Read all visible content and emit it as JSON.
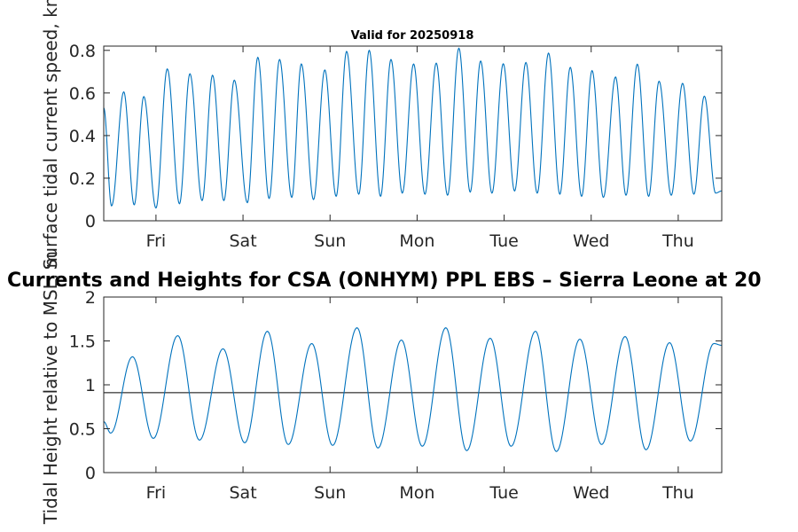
{
  "chart_data": [
    {
      "type": "line",
      "title": "Valid for 20250918",
      "ylabel": "Surface tidal current speed, kn",
      "xlabel": "",
      "ylim": [
        0,
        0.82
      ],
      "yticks": [
        0,
        0.2,
        0.4,
        0.6,
        0.8
      ],
      "ytick_labels": [
        "0",
        "0.2",
        "0.4",
        "0.6",
        "0.8"
      ],
      "xlim": [
        0,
        7.1
      ],
      "x_unit": "days from start of record",
      "xticks": [
        0.6,
        1.6,
        2.6,
        3.6,
        4.6,
        5.6,
        6.6
      ],
      "xtick_labels": [
        "Fri",
        "Sat",
        "Sun",
        "Mon",
        "Tue",
        "Wed",
        "Thu"
      ],
      "grid": false,
      "series": [
        {
          "color": "#0072bd",
          "peak_times": [
            0.23,
            0.46,
            0.73,
            0.99,
            1.25,
            1.5,
            1.77,
            2.02,
            2.27,
            2.54,
            2.79,
            3.05,
            3.3,
            3.56,
            3.82,
            4.08,
            4.33,
            4.59,
            4.85,
            5.11,
            5.36,
            5.61,
            5.88,
            6.13,
            6.38,
            6.65,
            6.9
          ],
          "peak_values": [
            0.605,
            0.583,
            0.713,
            0.69,
            0.683,
            0.66,
            0.767,
            0.757,
            0.736,
            0.708,
            0.795,
            0.8,
            0.757,
            0.736,
            0.74,
            0.81,
            0.75,
            0.737,
            0.743,
            0.787,
            0.72,
            0.705,
            0.675,
            0.735,
            0.655,
            0.645,
            0.585
          ],
          "trough_times": [
            0.09,
            0.35,
            0.6,
            0.87,
            1.13,
            1.38,
            1.65,
            1.9,
            2.16,
            2.41,
            2.67,
            2.93,
            3.18,
            3.43,
            3.69,
            3.95,
            4.21,
            4.46,
            4.72,
            4.98,
            5.24,
            5.49,
            5.74,
            6.0,
            6.26,
            6.52,
            6.78,
            7.03
          ],
          "trough_values": [
            0.07,
            0.075,
            0.06,
            0.08,
            0.095,
            0.095,
            0.085,
            0.105,
            0.11,
            0.1,
            0.115,
            0.125,
            0.115,
            0.13,
            0.125,
            0.12,
            0.135,
            0.13,
            0.14,
            0.13,
            0.125,
            0.115,
            0.11,
            0.12,
            0.115,
            0.12,
            0.125,
            0.13
          ],
          "start_value": 0.53,
          "end_value": 0.14
        }
      ]
    },
    {
      "type": "line",
      "title": "Currents and Heights for CSA (ONHYM) PPL EBS  – Sierra Leone at 20",
      "ylabel": "Tidal Height relative to MSL, m",
      "xlabel": "",
      "ylim": [
        0,
        2
      ],
      "yticks": [
        0,
        0.5,
        1,
        1.5,
        2
      ],
      "ytick_labels": [
        "0",
        "0.5",
        "1",
        "1.5",
        "2"
      ],
      "xlim": [
        0,
        7.1
      ],
      "x_unit": "days from start of record",
      "xticks": [
        0.6,
        1.6,
        2.6,
        3.6,
        4.6,
        5.6,
        6.6
      ],
      "xtick_labels": [
        "Fri",
        "Sat",
        "Sun",
        "Mon",
        "Tue",
        "Wed",
        "Thu"
      ],
      "grid": false,
      "reference_line": 0.91,
      "series": [
        {
          "color": "#0072bd",
          "peak_times": [
            0.33,
            0.85,
            1.37,
            1.88,
            2.39,
            2.91,
            3.42,
            3.93,
            4.44,
            4.96,
            5.47,
            5.99,
            6.5,
            7.01
          ],
          "peak_values": [
            1.32,
            1.56,
            1.41,
            1.61,
            1.47,
            1.65,
            1.51,
            1.65,
            1.53,
            1.61,
            1.52,
            1.55,
            1.48,
            1.47
          ],
          "trough_times": [
            0.08,
            0.57,
            1.1,
            1.62,
            2.12,
            2.63,
            3.15,
            3.66,
            4.17,
            4.68,
            5.2,
            5.72,
            6.23,
            6.74
          ],
          "trough_values": [
            0.45,
            0.39,
            0.37,
            0.34,
            0.32,
            0.31,
            0.28,
            0.3,
            0.25,
            0.3,
            0.24,
            0.32,
            0.26,
            0.36
          ],
          "start_value": 0.58,
          "end_value": 1.45
        }
      ]
    }
  ]
}
